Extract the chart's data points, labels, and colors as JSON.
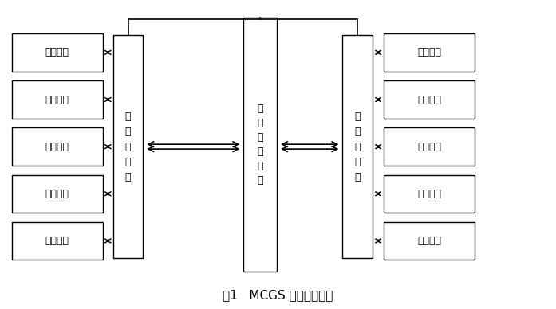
{
  "title": "图1   MCGS 组态运行环境",
  "title_fontsize": 11,
  "background_color": "#ffffff",
  "left_boxes": [
    "构建动画",
    "流程控制",
    "报警组态",
    "设计报表",
    "连接设备"
  ],
  "right_boxes": [
    "动画显示",
    "现场控制",
    "报警输出",
    "报表打印",
    "设备输出"
  ],
  "left_tall_label": "实\n时\n数\n据\n库",
  "right_tall_label": "实\n时\n数\n据\n库",
  "center_tall_label": "组\n态\n软\n件\n核\n心",
  "box_facecolor": "#ffffff",
  "box_edgecolor": "#000000",
  "tall_facecolor": "#ffffff",
  "text_color": "#000000",
  "font_size": 9,
  "tall_font_size": 9,
  "lw": 1.0
}
